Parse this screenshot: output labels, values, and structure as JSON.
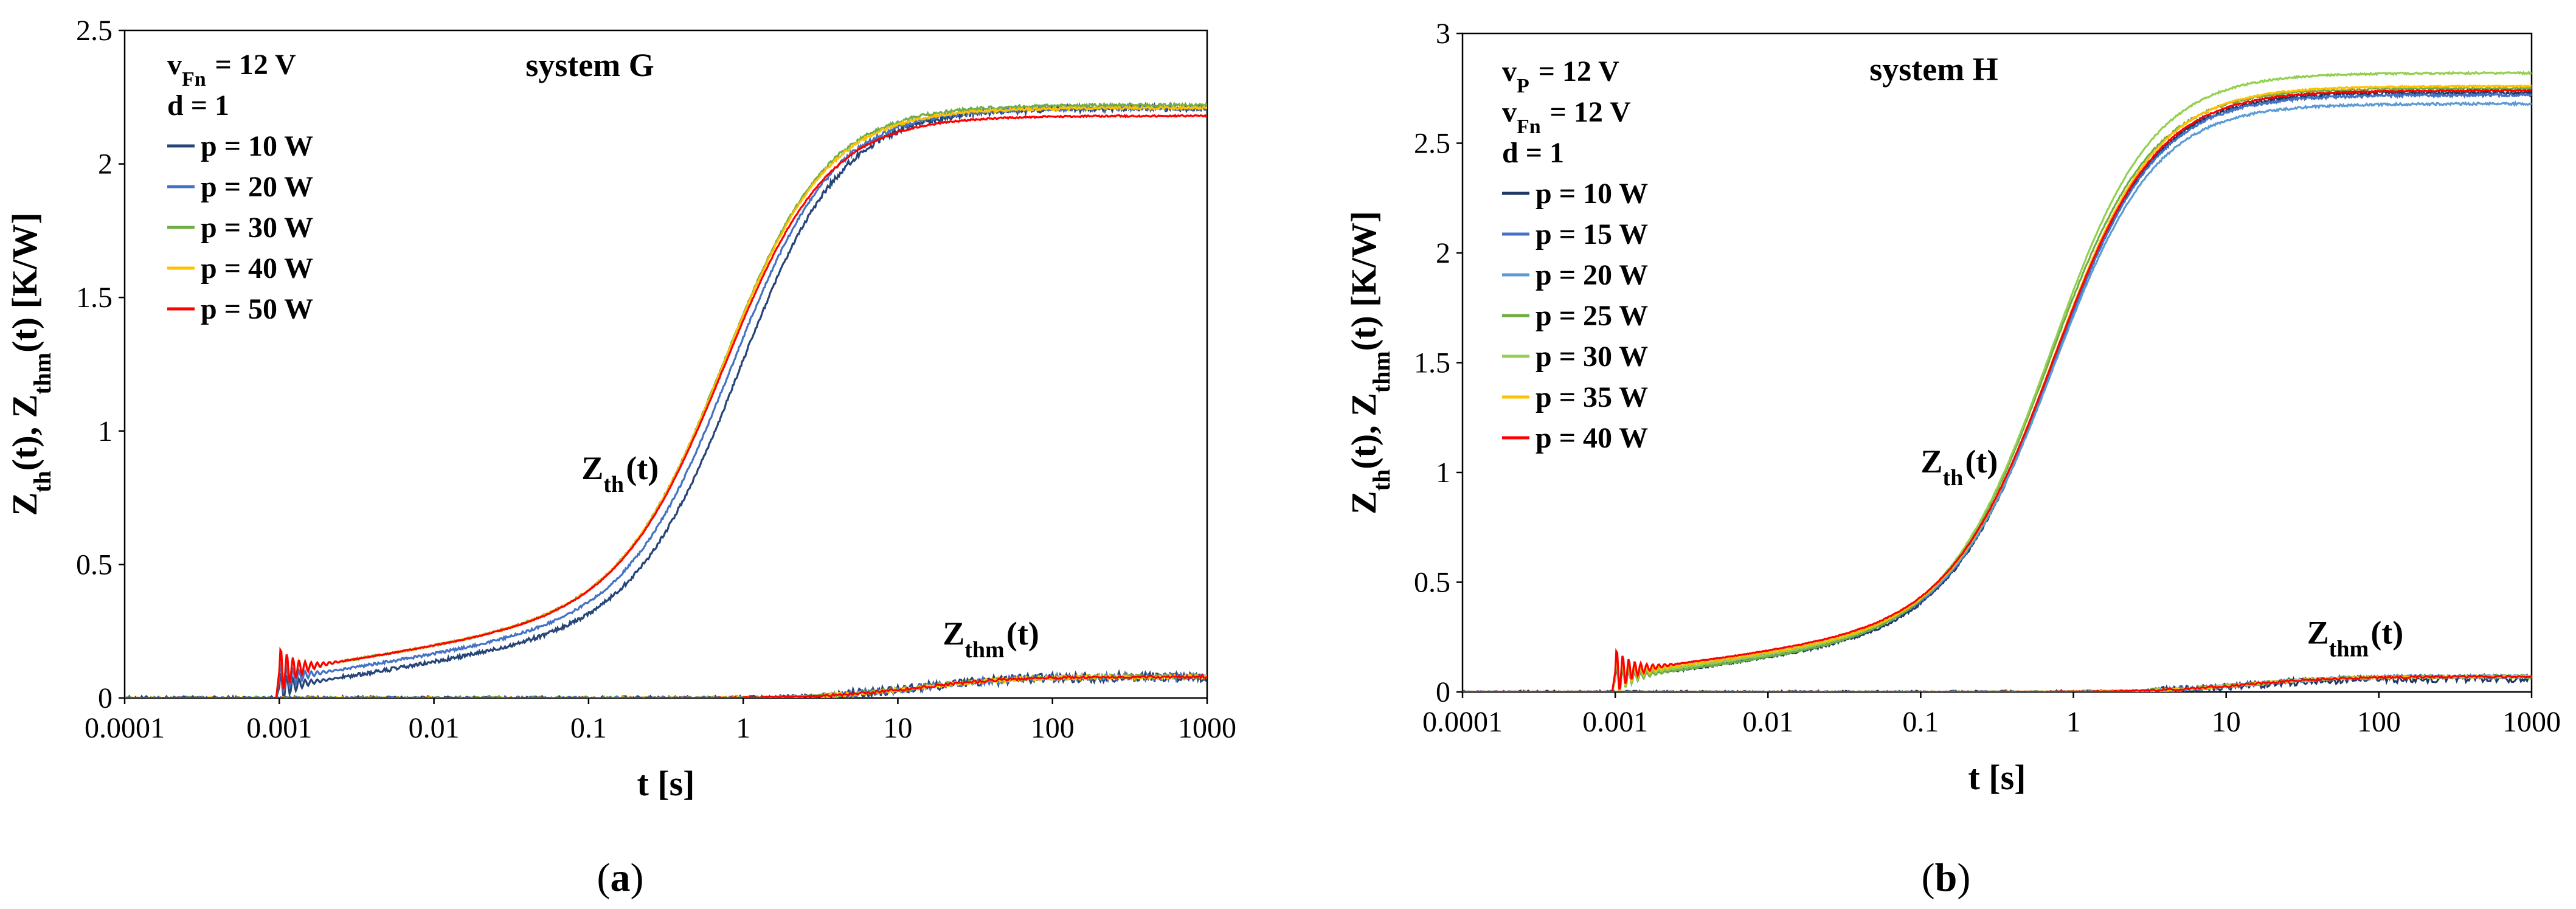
{
  "chart_data": [
    {
      "panel": "a",
      "type": "line",
      "title": "system G",
      "caption": "(a)",
      "xlabel": "t [s]",
      "ylabel": {
        "main": "Z",
        "sub1": "th",
        "mid": "(t), Z",
        "sub2": "thm",
        "tail": "(t) [K/W]"
      },
      "x_scale": "log",
      "xlim": [
        0.0001,
        1000
      ],
      "ylim": [
        0,
        2.5
      ],
      "x_ticks": [
        0.0001,
        0.001,
        0.01,
        0.1,
        1,
        10,
        100,
        1000
      ],
      "x_tick_labels": [
        "0.0001",
        "0.001",
        "0.01",
        "0.1",
        "1",
        "10",
        "100",
        "1000"
      ],
      "y_ticks": [
        0,
        0.5,
        1,
        1.5,
        2,
        2.5
      ],
      "y_tick_labels": [
        "0",
        "0.5",
        "1",
        "1.5",
        "2",
        "2.5"
      ],
      "legend_header": [
        {
          "main": "v",
          "sub": "Fn",
          "tail": " = 12 V"
        },
        {
          "main": "d = 1",
          "sub": "",
          "tail": ""
        }
      ],
      "annotations": {
        "zth": {
          "main": "Z",
          "sub": "th",
          "tail": "(t)",
          "x": 0.09,
          "y": 0.82
        },
        "zthm": {
          "main": "Z",
          "sub": "thm",
          "tail": "(t)",
          "x": 40,
          "y": 0.2
        }
      },
      "series": [
        {
          "name": "p = 10 W",
          "color": "#264478",
          "zth_final": 2.21,
          "zth_low": 0.04,
          "shift": 0.1,
          "zthm_final": 0.08,
          "noise": 0.012
        },
        {
          "name": "p = 20 W",
          "color": "#4472C4",
          "zth_final": 2.21,
          "zth_low": 0.07,
          "shift": 0.05,
          "zthm_final": 0.08,
          "noise": 0.008
        },
        {
          "name": "p = 30 W",
          "color": "#70AD47",
          "zth_final": 2.22,
          "zth_low": 0.1,
          "shift": 0.0,
          "zthm_final": 0.08,
          "noise": 0.006
        },
        {
          "name": "p = 40 W",
          "color": "#FFC000",
          "zth_final": 2.21,
          "zth_low": 0.1,
          "shift": 0.0,
          "zthm_final": 0.08,
          "noise": 0.005
        },
        {
          "name": "p = 50 W",
          "color": "#FF0000",
          "zth_final": 2.18,
          "zth_low": 0.1,
          "shift": 0.0,
          "zthm_final": 0.08,
          "noise": 0.003
        }
      ]
    },
    {
      "panel": "b",
      "type": "line",
      "title": "system H",
      "caption": "(b)",
      "xlabel": "t [s]",
      "ylabel": {
        "main": "Z",
        "sub1": "th",
        "mid": "(t), Z",
        "sub2": "thm",
        "tail": "(t) [K/W]"
      },
      "x_scale": "log",
      "xlim": [
        0.0001,
        1000
      ],
      "ylim": [
        0,
        3
      ],
      "x_ticks": [
        0.0001,
        0.001,
        0.01,
        0.1,
        1,
        10,
        100,
        1000
      ],
      "x_tick_labels": [
        "0.0001",
        "0.001",
        "0.01",
        "0.1",
        "1",
        "10",
        "100",
        "1000"
      ],
      "y_ticks": [
        0,
        0.5,
        1,
        1.5,
        2,
        2.5,
        3
      ],
      "y_tick_labels": [
        "0",
        "0.5",
        "1",
        "1.5",
        "2",
        "2.5",
        "3"
      ],
      "legend_header": [
        {
          "main": "v",
          "sub": "P",
          "tail": " = 12 V"
        },
        {
          "main": "v",
          "sub": "Fn",
          "tail": " = 12 V"
        },
        {
          "main": "d = 1",
          "sub": "",
          "tail": ""
        }
      ],
      "annotations": {
        "zth": {
          "main": "Z",
          "sub": "th",
          "tail": "(t)",
          "x": 0.1,
          "y": 1.0
        },
        "zthm": {
          "main": "Z",
          "sub": "thm",
          "tail": "(t)",
          "x": 70,
          "y": 0.22
        }
      },
      "series": [
        {
          "name": "p = 10 W",
          "color": "#1F3864",
          "zth_final": 2.73,
          "zth_low": 0.06,
          "shift": 0.0,
          "zthm_final": 0.06,
          "noise": 0.01
        },
        {
          "name": "p = 15 W",
          "color": "#4472C4",
          "zth_final": 2.72,
          "zth_low": 0.07,
          "shift": 0.0,
          "zthm_final": 0.07,
          "noise": 0.006
        },
        {
          "name": "p = 20 W",
          "color": "#5B9BD5",
          "zth_final": 2.68,
          "zth_low": 0.08,
          "shift": 0.0,
          "zthm_final": 0.07,
          "noise": 0.005
        },
        {
          "name": "p = 25 W",
          "color": "#70AD47",
          "zth_final": 2.75,
          "zth_low": 0.06,
          "shift": -0.03,
          "zthm_final": 0.07,
          "noise": 0.005
        },
        {
          "name": "p = 30 W",
          "color": "#92D050",
          "zth_final": 2.82,
          "zth_low": 0.07,
          "shift": -0.02,
          "zthm_final": 0.07,
          "noise": 0.004
        },
        {
          "name": "p = 35 W",
          "color": "#FFC000",
          "zth_final": 2.76,
          "zth_low": 0.08,
          "shift": 0.0,
          "zthm_final": 0.07,
          "noise": 0.003
        },
        {
          "name": "p = 40 W",
          "color": "#FF0000",
          "zth_final": 2.74,
          "zth_low": 0.09,
          "shift": 0.0,
          "zthm_final": 0.07,
          "noise": 0.003
        }
      ]
    }
  ]
}
